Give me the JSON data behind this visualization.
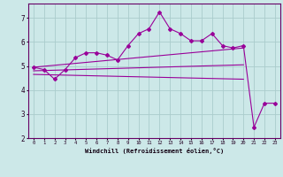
{
  "xlabel": "Windchill (Refroidissement éolien,°C)",
  "x_ticks": [
    0,
    1,
    2,
    3,
    4,
    5,
    6,
    7,
    8,
    9,
    10,
    11,
    12,
    13,
    14,
    15,
    16,
    17,
    18,
    19,
    20,
    21,
    22,
    23
  ],
  "ylim": [
    2.0,
    7.6
  ],
  "xlim": [
    -0.5,
    23.5
  ],
  "background_color": "#cce8e8",
  "line_color": "#990099",
  "grid_color": "#aacccc",
  "series1_x": [
    0,
    1,
    2,
    3,
    4,
    5,
    6,
    7,
    8,
    9,
    10,
    11,
    12,
    13,
    14,
    15,
    16,
    17,
    18,
    19,
    20,
    21,
    22,
    23
  ],
  "series1_y": [
    4.95,
    4.85,
    4.45,
    4.85,
    5.35,
    5.55,
    5.55,
    5.45,
    5.25,
    5.85,
    6.35,
    6.55,
    7.25,
    6.55,
    6.35,
    6.05,
    6.05,
    6.35,
    5.85,
    5.75,
    5.85,
    2.45,
    3.45,
    3.45
  ],
  "trend1_x": [
    0,
    20
  ],
  "trend1_y": [
    4.95,
    5.75
  ],
  "trend2_x": [
    0,
    20
  ],
  "trend2_y": [
    4.8,
    5.05
  ],
  "trend3_x": [
    0,
    20
  ],
  "trend3_y": [
    4.65,
    4.45
  ],
  "yticks": [
    2,
    3,
    4,
    5,
    6,
    7
  ],
  "spine_color": "#660066"
}
